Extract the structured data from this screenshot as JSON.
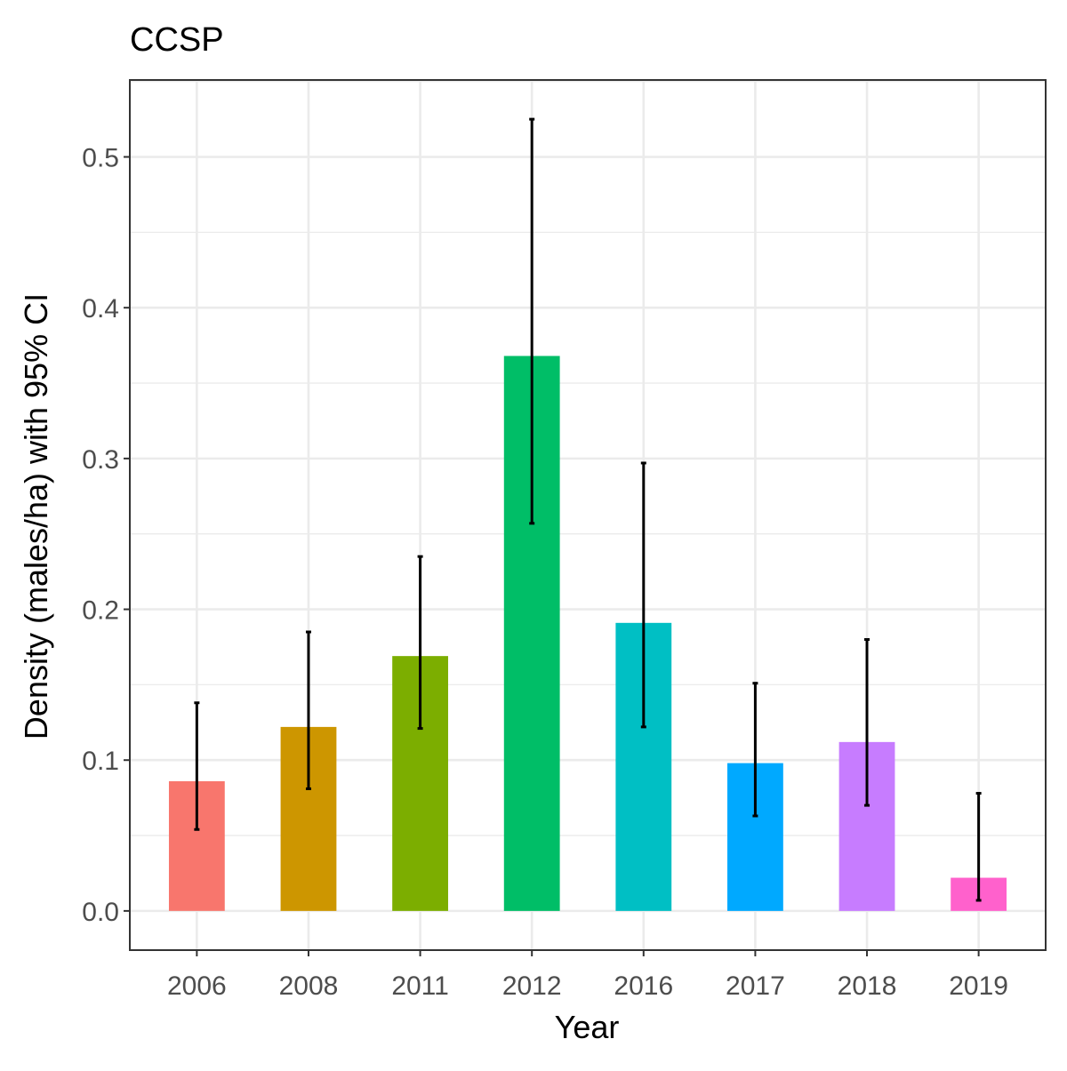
{
  "chart_data": {
    "type": "bar",
    "title": "CCSP",
    "xlabel": "Year",
    "ylabel": "Density (males/ha) with 95% CI",
    "categories": [
      "2006",
      "2008",
      "2011",
      "2012",
      "2016",
      "2017",
      "2018",
      "2019"
    ],
    "values": [
      0.086,
      0.122,
      0.169,
      0.368,
      0.191,
      0.098,
      0.112,
      0.022
    ],
    "ci_lower": [
      0.054,
      0.081,
      0.121,
      0.257,
      0.122,
      0.063,
      0.07,
      0.007
    ],
    "ci_upper": [
      0.138,
      0.185,
      0.235,
      0.525,
      0.297,
      0.151,
      0.18,
      0.078
    ],
    "colors": [
      "#F8766D",
      "#CD9600",
      "#7CAE00",
      "#00BE67",
      "#00BFC4",
      "#00A9FF",
      "#C77CFF",
      "#FF61CC"
    ],
    "ylim": [
      -0.026,
      0.551
    ],
    "yticks": [
      0.0,
      0.1,
      0.2,
      0.3,
      0.4,
      0.5
    ],
    "ytick_labels": [
      "0.0",
      "0.1",
      "0.2",
      "0.3",
      "0.4",
      "0.5"
    ],
    "grid": true,
    "legend": "none",
    "errorbar_color": "#000000"
  }
}
